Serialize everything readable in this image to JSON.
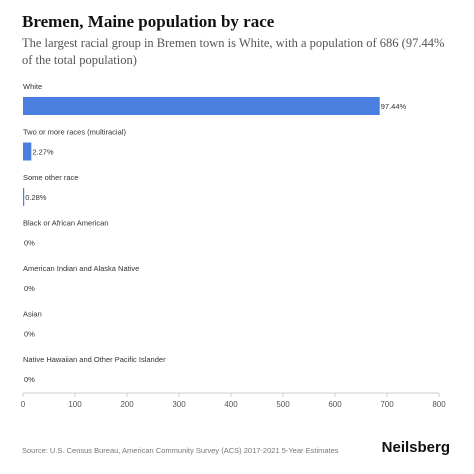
{
  "header": {
    "title": "Bremen, Maine population by race",
    "subtitle": "The largest racial group in Bremen town is White, with a population of 686 (97.44% of the total population)"
  },
  "footer": {
    "source": "Source: U.S. Census Bureau, American Community Survey (ACS) 2017-2021 5-Year Estimates",
    "brand": "Neilsberg"
  },
  "colors": {
    "bar": "#4a7fe0",
    "axis": "#cccccc",
    "label": "#333333"
  },
  "chart_data": {
    "type": "bar",
    "orientation": "horizontal",
    "categories": [
      "White",
      "Two or more races (multiracial)",
      "Some other race",
      "Black or African American",
      "American Indian and Alaska Native",
      "Asian",
      "Native Hawaiian and Other Pacific Islander"
    ],
    "values": [
      686,
      16,
      2,
      0,
      0,
      0,
      0
    ],
    "value_labels": [
      "97.44%",
      "2.27%",
      "0.28%",
      "0%",
      "0%",
      "0%",
      "0%"
    ],
    "xlim": [
      0,
      800
    ],
    "xticks": [
      0,
      100,
      200,
      300,
      400,
      500,
      600,
      700,
      800
    ],
    "grid": false
  }
}
